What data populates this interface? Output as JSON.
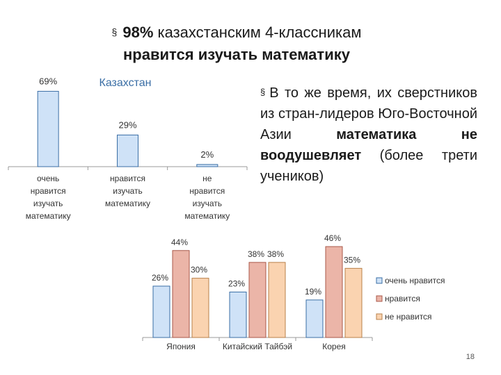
{
  "title": {
    "bullet": "§",
    "line1_bold": "98%",
    "line1_rest": " казахстанским 4-классникам",
    "line2": "нравится изучать математику"
  },
  "note": {
    "bullet": "§",
    "part1": "В то же время, их сверстников из стран-лидеров Юго-Восточной Азии ",
    "bold1": "математика не воодушевляет",
    "part2": " (более трети учеников)"
  },
  "slide_number": "18",
  "chart_data": [
    {
      "type": "bar",
      "title": "Казахстан",
      "categories": [
        "очень нравится изучать математику",
        "нравится изучать математику",
        "не нравится изучать математику"
      ],
      "values": [
        69,
        29,
        2
      ],
      "value_labels": [
        "69%",
        "29%",
        "2%"
      ],
      "ylim": [
        0,
        75
      ],
      "grid": false,
      "bar_color": "#cfe2f7",
      "bar_stroke": "#3a6ea5"
    },
    {
      "type": "bar",
      "title": "",
      "categories": [
        "Япония",
        "Китайский Тайбэй",
        "Корея"
      ],
      "series": [
        {
          "name": "очень нравится",
          "values": [
            26,
            23,
            19
          ],
          "labels": [
            "26%",
            "23%",
            "19%"
          ],
          "color": "#cfe2f7",
          "stroke": "#3a6ea5"
        },
        {
          "name": "нравится",
          "values": [
            44,
            38,
            46
          ],
          "labels": [
            "44%",
            "38%",
            "46%"
          ],
          "color": "#ebb5a8",
          "stroke": "#a8584a"
        },
        {
          "name": "не нравится",
          "values": [
            30,
            38,
            35
          ],
          "labels": [
            "30%",
            "38%",
            "35%"
          ],
          "color": "#fad3b0",
          "stroke": "#b8804a"
        }
      ],
      "ylim": [
        0,
        52
      ],
      "grid": false,
      "legend": "right"
    }
  ]
}
